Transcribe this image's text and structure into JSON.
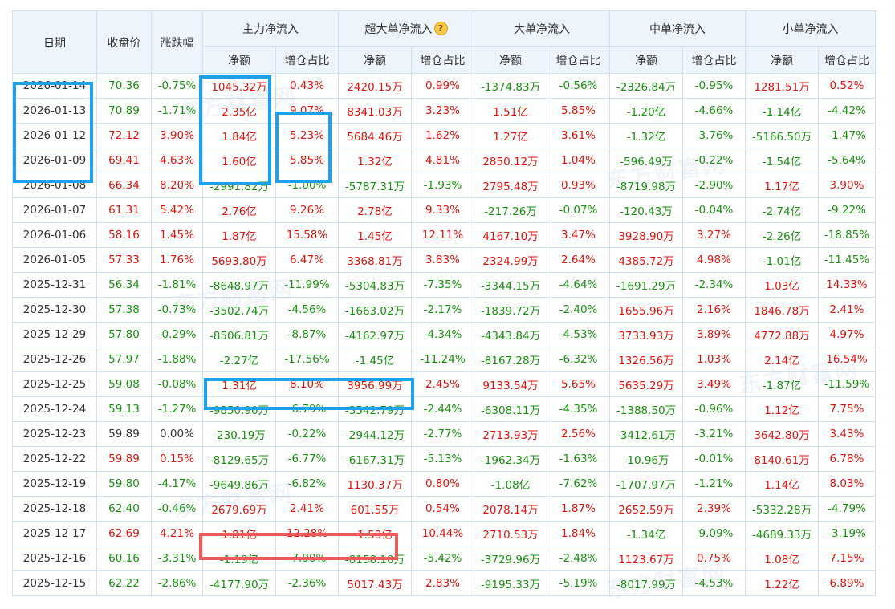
{
  "table": {
    "headers": {
      "date": "日期",
      "close": "收盘价",
      "change": "涨跌幅",
      "groups": [
        "主力净流入",
        "超大单净流入",
        "大单净流入",
        "中单净流入",
        "小单净流入"
      ],
      "sub_amount": "净额",
      "sub_ratio": "增仓占比"
    },
    "help_icon": "question-icon",
    "watermark": "东方财富网",
    "colors": {
      "up": "#e0130d",
      "down": "#17920f",
      "highlight_blue": "#1da1ec",
      "highlight_red": "#ec5a5a"
    },
    "rows": [
      [
        "2026-01-14",
        "70.36",
        "-0.75%",
        "1045.32万",
        "0.43%",
        "2420.15万",
        "0.99%",
        "-1374.83万",
        "-0.56%",
        "-2326.84万",
        "-0.95%",
        "1281.51万",
        "0.52%"
      ],
      [
        "2026-01-13",
        "70.89",
        "-1.71%",
        "2.35亿",
        "9.07%",
        "8341.03万",
        "3.23%",
        "1.51亿",
        "5.85%",
        "-1.20亿",
        "-4.66%",
        "-1.14亿",
        "-4.42%"
      ],
      [
        "2026-01-12",
        "72.12",
        "3.90%",
        "1.84亿",
        "5.23%",
        "5684.46万",
        "1.62%",
        "1.27亿",
        "3.61%",
        "-1.32亿",
        "-3.76%",
        "-5166.50万",
        "-1.47%"
      ],
      [
        "2026-01-09",
        "69.41",
        "4.63%",
        "1.60亿",
        "5.85%",
        "1.32亿",
        "4.81%",
        "2850.12万",
        "1.04%",
        "-596.49万",
        "-0.22%",
        "-1.54亿",
        "-5.64%"
      ],
      [
        "2026-01-08",
        "66.34",
        "8.20%",
        "-2991.82万",
        "-1.00%",
        "-5787.31万",
        "-1.93%",
        "2795.48万",
        "0.93%",
        "-8719.98万",
        "-2.90%",
        "1.17亿",
        "3.90%"
      ],
      [
        "2026-01-07",
        "61.31",
        "5.42%",
        "2.76亿",
        "9.26%",
        "2.78亿",
        "9.33%",
        "-217.26万",
        "-0.07%",
        "-120.43万",
        "-0.04%",
        "-2.74亿",
        "-9.22%"
      ],
      [
        "2026-01-06",
        "58.16",
        "1.45%",
        "1.87亿",
        "15.58%",
        "1.45亿",
        "12.11%",
        "4167.10万",
        "3.47%",
        "3928.90万",
        "3.27%",
        "-2.26亿",
        "-18.85%"
      ],
      [
        "2026-01-05",
        "57.33",
        "1.76%",
        "5693.80万",
        "6.47%",
        "3368.81万",
        "3.83%",
        "2324.99万",
        "2.64%",
        "4385.72万",
        "4.98%",
        "-1.01亿",
        "-11.45%"
      ],
      [
        "2025-12-31",
        "56.34",
        "-1.81%",
        "-8648.97万",
        "-11.99%",
        "-5304.83万",
        "-7.35%",
        "-3344.15万",
        "-4.64%",
        "-1691.29万",
        "-2.34%",
        "1.03亿",
        "14.33%"
      ],
      [
        "2025-12-30",
        "57.38",
        "-0.73%",
        "-3502.74万",
        "-4.56%",
        "-1663.02万",
        "-2.17%",
        "-1839.72万",
        "-2.40%",
        "1655.96万",
        "2.16%",
        "1846.78万",
        "2.41%"
      ],
      [
        "2025-12-29",
        "57.80",
        "-0.29%",
        "-8506.81万",
        "-8.87%",
        "-4162.97万",
        "-4.34%",
        "-4343.84万",
        "-4.53%",
        "3733.93万",
        "3.89%",
        "4772.88万",
        "4.97%"
      ],
      [
        "2025-12-26",
        "57.97",
        "-1.88%",
        "-2.27亿",
        "-17.56%",
        "-1.45亿",
        "-11.24%",
        "-8167.28万",
        "-6.32%",
        "1326.56万",
        "1.03%",
        "2.14亿",
        "16.54%"
      ],
      [
        "2025-12-25",
        "59.08",
        "-0.08%",
        "1.31亿",
        "8.10%",
        "3956.99万",
        "2.45%",
        "9133.54万",
        "5.65%",
        "5635.29万",
        "3.49%",
        "-1.87亿",
        "-11.59%"
      ],
      [
        "2025-12-24",
        "59.13",
        "-1.27%",
        "-9850.90万",
        "-6.79%",
        "-3542.79万",
        "-2.44%",
        "-6308.11万",
        "-4.35%",
        "-1388.50万",
        "-0.96%",
        "1.12亿",
        "7.75%"
      ],
      [
        "2025-12-23",
        "59.89",
        "0.00%",
        "-230.19万",
        "-0.22%",
        "-2944.12万",
        "-2.77%",
        "2713.93万",
        "2.56%",
        "-3412.61万",
        "-3.21%",
        "3642.80万",
        "3.43%"
      ],
      [
        "2025-12-22",
        "59.89",
        "0.15%",
        "-8129.65万",
        "-6.77%",
        "-6167.31万",
        "-5.13%",
        "-1962.34万",
        "-1.63%",
        "-10.96万",
        "-0.01%",
        "8140.61万",
        "6.78%"
      ],
      [
        "2025-12-19",
        "59.80",
        "-4.17%",
        "-9649.86万",
        "-6.82%",
        "1130.37万",
        "0.80%",
        "-1.08亿",
        "-7.62%",
        "-1707.97万",
        "-1.21%",
        "1.14亿",
        "8.03%"
      ],
      [
        "2025-12-18",
        "62.40",
        "-0.46%",
        "2679.69万",
        "2.41%",
        "601.55万",
        "0.54%",
        "2078.14万",
        "1.87%",
        "2652.59万",
        "2.39%",
        "-5332.28万",
        "-4.79%"
      ],
      [
        "2025-12-17",
        "62.69",
        "4.21%",
        "1.81亿",
        "12.28%",
        "1.53亿",
        "10.44%",
        "2710.53万",
        "1.84%",
        "-1.34亿",
        "-9.09%",
        "-4689.33万",
        "-3.19%"
      ],
      [
        "2025-12-16",
        "60.16",
        "-3.31%",
        "-1.19亿",
        "-7.90%",
        "-8158.10万",
        "-5.42%",
        "-3729.96万",
        "-2.48%",
        "1123.67万",
        "0.75%",
        "1.08亿",
        "7.15%"
      ],
      [
        "2025-12-15",
        "62.22",
        "-2.86%",
        "-4177.90万",
        "-2.36%",
        "5017.43万",
        "2.83%",
        "-9195.33万",
        "-5.19%",
        "-8017.99万",
        "-4.53%",
        "1.22亿",
        "6.89%"
      ]
    ]
  }
}
